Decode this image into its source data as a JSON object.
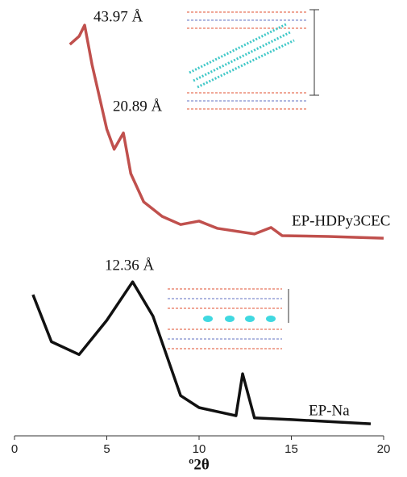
{
  "chart_data": {
    "type": "line",
    "x_label": "º2θ",
    "xlim": [
      0,
      20
    ],
    "xticks": [
      0,
      5,
      10,
      15,
      20
    ],
    "ylim": [
      0,
      100
    ],
    "series": [
      {
        "name": "EP-HDPy3CEC",
        "color": "#c0504d",
        "x": [
          3,
          3.5,
          3.8,
          4.2,
          5,
          5.4,
          5.9,
          6.3,
          7,
          8,
          9,
          10,
          11,
          13,
          13.9,
          14.5,
          17,
          20
        ],
        "values": [
          91.5,
          93.4,
          96,
          86.8,
          71.7,
          67,
          70.8,
          61.3,
          54.7,
          51.3,
          49.4,
          50.2,
          48.5,
          47.2,
          48.7,
          46.8,
          46.6,
          46.2
        ]
      },
      {
        "name": "EP-Na",
        "color": "#111111",
        "x": [
          1,
          2,
          3.5,
          5,
          6.4,
          7.5,
          9,
          10,
          12,
          12.36,
          13,
          15,
          19.3
        ],
        "values": [
          33,
          22,
          19,
          27,
          36,
          28,
          9.4,
          6.6,
          4.7,
          14.5,
          4.2,
          3.8,
          2.8
        ]
      }
    ],
    "annotations": [
      "43.97 Å",
      "20.89 Å",
      "12.36 Å"
    ]
  }
}
